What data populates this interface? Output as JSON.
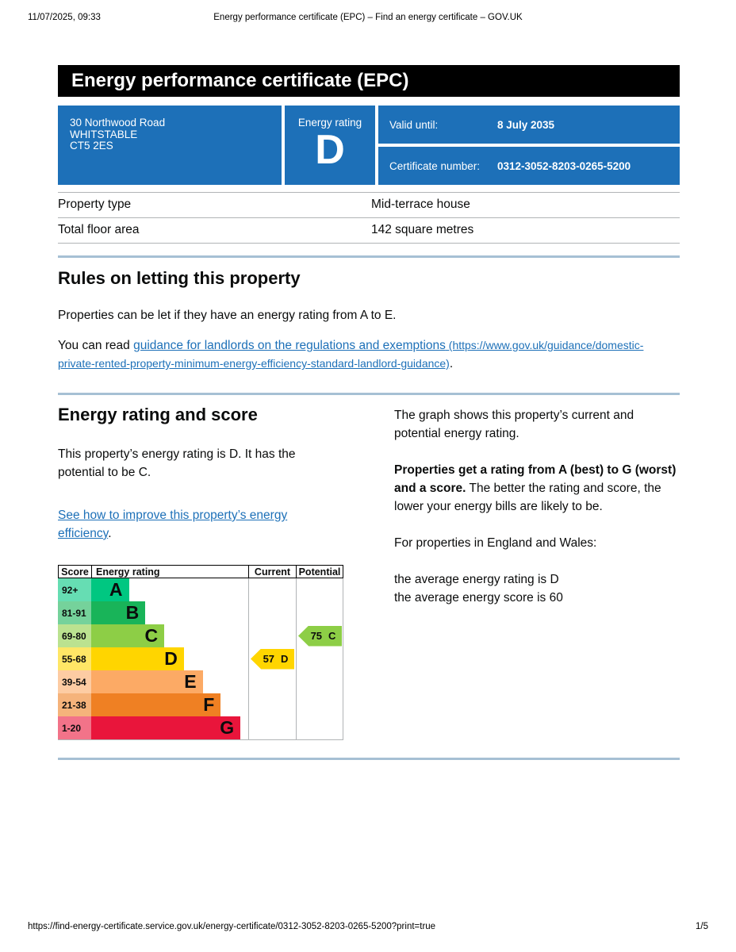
{
  "print_header": {
    "datetime": "11/07/2025, 09:33",
    "title": "Energy performance certificate (EPC) – Find an energy certificate – GOV.UK"
  },
  "banner": {
    "title": "Energy performance certificate (EPC)"
  },
  "summary": {
    "address_lines": [
      "30 Northwood Road",
      "WHITSTABLE",
      "CT5 2ES"
    ],
    "rating_label": "Energy rating",
    "rating_letter": "D",
    "valid_until_label": "Valid until:",
    "valid_until_value": "8 July 2035",
    "certificate_number_label": "Certificate number:",
    "certificate_number_value": "0312-3052-8203-0265-5200",
    "box_color": "#1d70b8"
  },
  "property_table": {
    "rows": [
      {
        "label": "Property type",
        "value": "Mid-terrace house"
      },
      {
        "label": "Total floor area",
        "value": "142 square metres"
      }
    ]
  },
  "letting_rules": {
    "heading": "Rules on letting this property",
    "para1": "Properties can be let if they have an energy rating from A to E.",
    "para2_prefix": "You can read ",
    "link_text": "guidance for landlords on the regulations and exemptions",
    "link_url_text": " (https://www.gov.uk/guidance/domestic-private-rented-property-minimum-energy-efficiency-standard-landlord-guidance)",
    "para2_suffix": "."
  },
  "rating_section": {
    "heading": "Energy rating and score",
    "para1": "This property’s energy rating is D. It has the potential to be C.",
    "improve_link_text": "See how to improve this property’s energy efficiency",
    "improve_suffix": ".",
    "right_para1": "The graph shows this property’s current and potential energy rating.",
    "right_para2_bold": "Properties get a rating from A (best) to G (worst) and a score.",
    "right_para2_rest": " The better the rating and score, the lower your energy bills are likely to be.",
    "right_para3": "For properties in England and Wales:",
    "right_avg_rating": "the average energy rating is D",
    "right_avg_score": "the average energy score is 60"
  },
  "chart_data": {
    "type": "bar",
    "title": "Energy rating and score",
    "headers": [
      "Score",
      "Energy rating",
      "Current",
      "Potential"
    ],
    "bands": [
      {
        "score_range": "92+",
        "letter": "A",
        "color": "#00c781",
        "width_pct": 24
      },
      {
        "score_range": "81-91",
        "letter": "B",
        "color": "#19b459",
        "width_pct": 34.5
      },
      {
        "score_range": "69-80",
        "letter": "C",
        "color": "#8dce46",
        "width_pct": 46.5
      },
      {
        "score_range": "55-68",
        "letter": "D",
        "color": "#ffd500",
        "width_pct": 59
      },
      {
        "score_range": "39-54",
        "letter": "E",
        "color": "#fcaa65",
        "width_pct": 71
      },
      {
        "score_range": "21-38",
        "letter": "F",
        "color": "#ef8023",
        "width_pct": 82.5
      },
      {
        "score_range": "1-20",
        "letter": "G",
        "color": "#e9153b",
        "width_pct": 95
      }
    ],
    "current": {
      "score": 57,
      "letter": "D",
      "band_index": 3,
      "color": "#ffd500",
      "column_label": "Current"
    },
    "potential": {
      "score": 75,
      "letter": "C",
      "band_index": 2,
      "color": "#8dce46",
      "column_label": "Potential"
    },
    "score_cell_opacity": 0.6,
    "grid_color": "#b1b4b6"
  },
  "print_footer": {
    "url": "https://find-energy-certificate.service.gov.uk/energy-certificate/0312-3052-8203-0265-5200?print=true",
    "page": "1/5"
  }
}
